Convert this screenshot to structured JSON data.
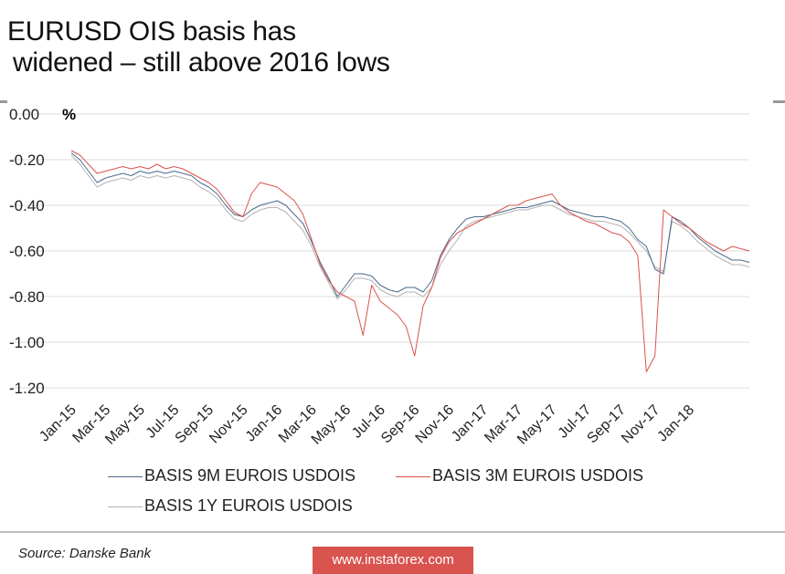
{
  "title_line1": "EURUSD OIS basis has",
  "title_line2": "widened – still above 2016  lows",
  "source": "Source: Danske Bank",
  "watermark": "www.instaforex.com",
  "chart_data": {
    "type": "line",
    "title": "EURUSD OIS basis has widened – still above 2016  lows",
    "ylabel": "%",
    "xlabel": "",
    "ylim": [
      -1.2,
      0.0
    ],
    "yticks": [
      0.0,
      -0.2,
      -0.4,
      -0.6,
      -0.8,
      -1.0,
      -1.2
    ],
    "ytick_labels": [
      "0.00",
      "-0.20",
      "-0.40",
      "-0.60",
      "-0.80",
      "-1.00",
      "-1.20"
    ],
    "grid": true,
    "legend_position": "bottom",
    "categories": [
      "Jan-15",
      "Mar-15",
      "May-15",
      "Jul-15",
      "Sep-15",
      "Nov-15",
      "Jan-16",
      "Mar-16",
      "May-16",
      "Jul-16",
      "Sep-16",
      "Nov-16",
      "Jan-17",
      "Mar-17",
      "May-17",
      "Jul-17",
      "Sep-17",
      "Nov-17",
      "Jan-18"
    ],
    "x_note": "x values are months since Jan-15",
    "series": [
      {
        "name": "BASIS 9M EUROIS USDOIS",
        "color": "#4a6b8a",
        "x": [
          0,
          0.5,
          1,
          1.5,
          2,
          2.5,
          3,
          3.5,
          4,
          4.5,
          5,
          5.5,
          6,
          6.5,
          7,
          7.5,
          8,
          8.5,
          9,
          9.5,
          10,
          10.5,
          11,
          11.5,
          12,
          12.5,
          13,
          13.5,
          14,
          14.5,
          15,
          15.5,
          16,
          16.5,
          17,
          17.5,
          18,
          18.5,
          19,
          19.5,
          20,
          20.5,
          21,
          21.5,
          22,
          22.5,
          23,
          23.5,
          24,
          24.5,
          25,
          25.5,
          26,
          26.5,
          27,
          27.5,
          28,
          28.5,
          29,
          29.5,
          30,
          30.5,
          31,
          31.5,
          32,
          32.5,
          33,
          33.5,
          34,
          34.5,
          35,
          35.5,
          36,
          36.5,
          37,
          37.5,
          38,
          38.5,
          39,
          39.5
        ],
        "values": [
          -0.17,
          -0.2,
          -0.25,
          -0.3,
          -0.28,
          -0.27,
          -0.26,
          -0.27,
          -0.25,
          -0.26,
          -0.25,
          -0.26,
          -0.25,
          -0.26,
          -0.27,
          -0.3,
          -0.32,
          -0.35,
          -0.4,
          -0.44,
          -0.45,
          -0.42,
          -0.4,
          -0.39,
          -0.38,
          -0.4,
          -0.44,
          -0.48,
          -0.56,
          -0.65,
          -0.72,
          -0.8,
          -0.75,
          -0.7,
          -0.7,
          -0.71,
          -0.75,
          -0.77,
          -0.78,
          -0.76,
          -0.76,
          -0.78,
          -0.73,
          -0.62,
          -0.55,
          -0.5,
          -0.46,
          -0.45,
          -0.45,
          -0.44,
          -0.43,
          -0.42,
          -0.41,
          -0.41,
          -0.4,
          -0.39,
          -0.38,
          -0.4,
          -0.42,
          -0.43,
          -0.44,
          -0.45,
          -0.45,
          -0.46,
          -0.47,
          -0.5,
          -0.55,
          -0.58,
          -0.68,
          -0.7,
          -0.45,
          -0.47,
          -0.5,
          -0.54,
          -0.57,
          -0.6,
          -0.62,
          -0.64,
          -0.64,
          -0.65
        ]
      },
      {
        "name": "BASIS 3M EUROIS USDOIS",
        "color": "#d9534f",
        "x": [
          0,
          0.5,
          1,
          1.5,
          2,
          2.5,
          3,
          3.5,
          4,
          4.5,
          5,
          5.5,
          6,
          6.5,
          7,
          7.5,
          8,
          8.5,
          9,
          9.5,
          10,
          10.5,
          11,
          11.5,
          12,
          12.5,
          13,
          13.5,
          14,
          14.5,
          15,
          15.5,
          16,
          16.5,
          17,
          17.5,
          18,
          18.5,
          19,
          19.5,
          20,
          20.5,
          21,
          21.5,
          22,
          22.5,
          23,
          23.5,
          24,
          24.5,
          25,
          25.5,
          26,
          26.5,
          27,
          27.5,
          28,
          28.5,
          29,
          29.5,
          30,
          30.5,
          31,
          31.5,
          32,
          32.5,
          33,
          33.5,
          34,
          34.5,
          35,
          35.5,
          36,
          36.5,
          37,
          37.5,
          38,
          38.5,
          39,
          39.5
        ],
        "values": [
          -0.16,
          -0.18,
          -0.22,
          -0.26,
          -0.25,
          -0.24,
          -0.23,
          -0.24,
          -0.23,
          -0.24,
          -0.22,
          -0.24,
          -0.23,
          -0.24,
          -0.26,
          -0.28,
          -0.3,
          -0.33,
          -0.38,
          -0.43,
          -0.45,
          -0.35,
          -0.3,
          -0.31,
          -0.32,
          -0.35,
          -0.38,
          -0.44,
          -0.55,
          -0.66,
          -0.73,
          -0.78,
          -0.8,
          -0.82,
          -0.97,
          -0.75,
          -0.82,
          -0.85,
          -0.88,
          -0.93,
          -1.06,
          -0.84,
          -0.76,
          -0.63,
          -0.56,
          -0.52,
          -0.5,
          -0.48,
          -0.46,
          -0.44,
          -0.42,
          -0.4,
          -0.4,
          -0.38,
          -0.37,
          -0.36,
          -0.35,
          -0.4,
          -0.43,
          -0.45,
          -0.47,
          -0.48,
          -0.5,
          -0.52,
          -0.53,
          -0.56,
          -0.62,
          -1.13,
          -1.06,
          -0.42,
          -0.45,
          -0.48,
          -0.5,
          -0.53,
          -0.56,
          -0.58,
          -0.6,
          -0.58,
          -0.59,
          -0.6
        ]
      },
      {
        "name": "BASIS 1Y EUROIS USDOIS",
        "color": "#b3b3b3",
        "x": [
          0,
          0.5,
          1,
          1.5,
          2,
          2.5,
          3,
          3.5,
          4,
          4.5,
          5,
          5.5,
          6,
          6.5,
          7,
          7.5,
          8,
          8.5,
          9,
          9.5,
          10,
          10.5,
          11,
          11.5,
          12,
          12.5,
          13,
          13.5,
          14,
          14.5,
          15,
          15.5,
          16,
          16.5,
          17,
          17.5,
          18,
          18.5,
          19,
          19.5,
          20,
          20.5,
          21,
          21.5,
          22,
          22.5,
          23,
          23.5,
          24,
          24.5,
          25,
          25.5,
          26,
          26.5,
          27,
          27.5,
          28,
          28.5,
          29,
          29.5,
          30,
          30.5,
          31,
          31.5,
          32,
          32.5,
          33,
          33.5,
          34,
          34.5,
          35,
          35.5,
          36,
          36.5,
          37,
          37.5,
          38,
          38.5,
          39,
          39.5
        ],
        "values": [
          -0.18,
          -0.22,
          -0.27,
          -0.32,
          -0.3,
          -0.29,
          -0.28,
          -0.29,
          -0.27,
          -0.28,
          -0.27,
          -0.28,
          -0.27,
          -0.28,
          -0.29,
          -0.32,
          -0.34,
          -0.37,
          -0.42,
          -0.46,
          -0.47,
          -0.44,
          -0.42,
          -0.41,
          -0.41,
          -0.43,
          -0.47,
          -0.51,
          -0.58,
          -0.67,
          -0.74,
          -0.81,
          -0.77,
          -0.72,
          -0.72,
          -0.73,
          -0.77,
          -0.79,
          -0.8,
          -0.78,
          -0.78,
          -0.8,
          -0.76,
          -0.66,
          -0.6,
          -0.55,
          -0.49,
          -0.47,
          -0.46,
          -0.45,
          -0.44,
          -0.43,
          -0.42,
          -0.42,
          -0.41,
          -0.4,
          -0.4,
          -0.42,
          -0.44,
          -0.45,
          -0.46,
          -0.47,
          -0.47,
          -0.48,
          -0.49,
          -0.52,
          -0.56,
          -0.6,
          -0.67,
          -0.69,
          -0.47,
          -0.49,
          -0.52,
          -0.56,
          -0.59,
          -0.62,
          -0.64,
          -0.66,
          -0.66,
          -0.67
        ]
      }
    ]
  }
}
